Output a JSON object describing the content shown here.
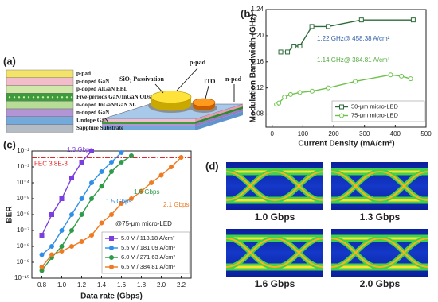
{
  "panel_a": {
    "label": "(a)",
    "layers": [
      {
        "name": "p-pad",
        "color": "#f3e36a"
      },
      {
        "name": "p-doped GaN",
        "color": "#f3bccb"
      },
      {
        "name": "p-doped AlGaN EBL",
        "color": "#cfe8a8"
      },
      {
        "name": "Five-periods GaN/InGaN QDs",
        "color": "#3d9b3d"
      },
      {
        "name": "n-doped InGaN/GaN SL",
        "color": "#b6dc96"
      },
      {
        "name": "n-doped GaN",
        "color": "#b394d4"
      },
      {
        "name": "Undope GaN",
        "color": "#74a9dc"
      },
      {
        "name": "Sapphire Substrate",
        "color": "#b3bcc4"
      }
    ],
    "device_labels": [
      "SiO₂ Passivation",
      "p-pad",
      "ITO",
      "n-pad"
    ]
  },
  "chart_data": [
    {
      "type": "line",
      "panel": "(b)",
      "xlabel": "Current Density (mA/cm²)",
      "ylabel": "Modulation Bandwidth (GHz)",
      "xlim": [
        -20,
        500
      ],
      "xticks": [
        0,
        100,
        200,
        300,
        400,
        500
      ],
      "ylim": [
        1.06,
        1.24
      ],
      "yticks": [
        1.08,
        1.12,
        1.16,
        {
          "value": 1.2,
          "label": "1.20"
        },
        1.24
      ],
      "series": [
        {
          "name": "50-μm micro-LED",
          "color": "#2e6b3a",
          "marker": "square",
          "hollow": true,
          "x": [
            28,
            50,
            71,
            90,
            129,
            182,
            290,
            458.38
          ],
          "values": [
            1.175,
            1.175,
            1.184,
            1.184,
            1.214,
            1.214,
            1.224,
            1.224
          ]
        },
        {
          "name": "75-μm micro-LED",
          "color": "#6cc24a",
          "marker": "circle",
          "hollow": true,
          "x": [
            14,
            22,
            40,
            60,
            90,
            130,
            182,
            270,
            384.81,
            420,
            450
          ],
          "values": [
            1.095,
            1.097,
            1.106,
            1.11,
            1.113,
            1.115,
            1.12,
            1.13,
            1.14,
            1.138,
            1.134
          ]
        }
      ],
      "annotations": [
        {
          "text": "1.22 GHz@ 458.38 A/cm²",
          "color": "#2f5fa8"
        },
        {
          "text": "1.14 GHz@ 384.81 A/cm²",
          "color": "#4fa83a"
        }
      ],
      "legend": "lower right"
    },
    {
      "type": "line",
      "panel": "(c)",
      "xlabel": "Data rate (Gbps)",
      "ylabel": "BER",
      "yscale": "log",
      "xlim": [
        0.7,
        2.3
      ],
      "xticks": [
        0.8,
        {
          "value": 1.0,
          "label": "1.0"
        },
        1.2,
        1.4,
        1.6,
        1.8,
        {
          "value": 2.0,
          "label": "2.0"
        },
        2.2
      ],
      "ylim": [
        1e-10,
        0.01
      ],
      "yticks": [
        {
          "value": 0.01,
          "label": "10⁻²"
        },
        {
          "value": 0.001,
          "label": "10⁻³"
        },
        {
          "value": 0.0001,
          "label": "10⁻⁴"
        },
        {
          "value": 1e-05,
          "label": "10⁻⁵"
        },
        {
          "value": 1e-06,
          "label": "10⁻⁶"
        },
        {
          "value": 1e-07,
          "label": "10⁻⁷"
        },
        {
          "value": 1e-08,
          "label": "10⁻⁸"
        },
        {
          "value": 1e-09,
          "label": "10⁻⁹"
        },
        {
          "value": 1e-10,
          "label": "10⁻¹⁰"
        }
      ],
      "reference_line": {
        "value": 0.0038,
        "label": "FEC 3.8E-3",
        "color": "#e0262a"
      },
      "series": [
        {
          "name": "5.0 V / 113.18 A/cm²",
          "color": "#7b3fe0",
          "marker": "square",
          "hollow": false,
          "x": [
            0.8,
            0.9,
            1.0,
            1.1,
            1.2,
            1.3
          ],
          "values": [
            5e-08,
            1e-06,
            1e-05,
            0.0002,
            0.002,
            0.01
          ]
        },
        {
          "name": "5.5 V / 181.09 A/cm²",
          "color": "#2f8fe8",
          "marker": "circle",
          "hollow": false,
          "x": [
            0.8,
            0.9,
            1.0,
            1.1,
            1.2,
            1.3,
            1.4,
            1.5,
            1.6
          ],
          "values": [
            3e-09,
            1e-08,
            1e-07,
            1e-06,
            1e-05,
            0.0001,
            0.0005,
            0.002,
            0.008
          ]
        },
        {
          "name": "6.0 V / 271.63 A/cm²",
          "color": "#2e9b4a",
          "marker": "circle",
          "hollow": false,
          "x": [
            0.8,
            0.9,
            1.0,
            1.1,
            1.2,
            1.3,
            1.4,
            1.5,
            1.6,
            1.7
          ],
          "values": [
            3e-10,
            2e-09,
            1e-08,
            1e-07,
            1e-06,
            1e-05,
            6e-05,
            0.0005,
            0.002,
            0.005
          ]
        },
        {
          "name": "6.5 V / 384.81 A/cm²",
          "color": "#ee7a22",
          "marker": "circle",
          "hollow": false,
          "x": [
            0.8,
            0.9,
            1.0,
            1.1,
            1.2,
            1.3,
            1.4,
            1.5,
            1.6,
            1.7,
            1.8,
            1.9,
            2.0,
            2.1,
            2.2
          ],
          "values": [
            5e-10,
            3e-09,
            5e-09,
            1e-08,
            2e-08,
            5e-08,
            3e-07,
            1e-06,
            5e-06,
            1e-05,
            3e-05,
            0.0001,
            0.0003,
            0.001,
            0.004
          ]
        }
      ],
      "annotations": [
        {
          "text": "1.3 Gbps",
          "color": "#7b3fe0"
        },
        {
          "text": "1.6 Gbps",
          "color": "#2e9b4a"
        },
        {
          "text": "1.5 Gbps",
          "color": "#2f8fe8"
        },
        {
          "text": "2.1 Gbps",
          "color": "#ee7a22"
        },
        {
          "text": "@75-μm micro-LED",
          "color": "#222222"
        }
      ],
      "legend": "lower right"
    }
  ],
  "panel_d": {
    "label": "(d)",
    "panels": [
      {
        "label": "1.0 Gbps"
      },
      {
        "label": "1.3 Gbps"
      },
      {
        "label": "1.6 Gbps"
      },
      {
        "label": "2.0 Gbps"
      }
    ]
  }
}
